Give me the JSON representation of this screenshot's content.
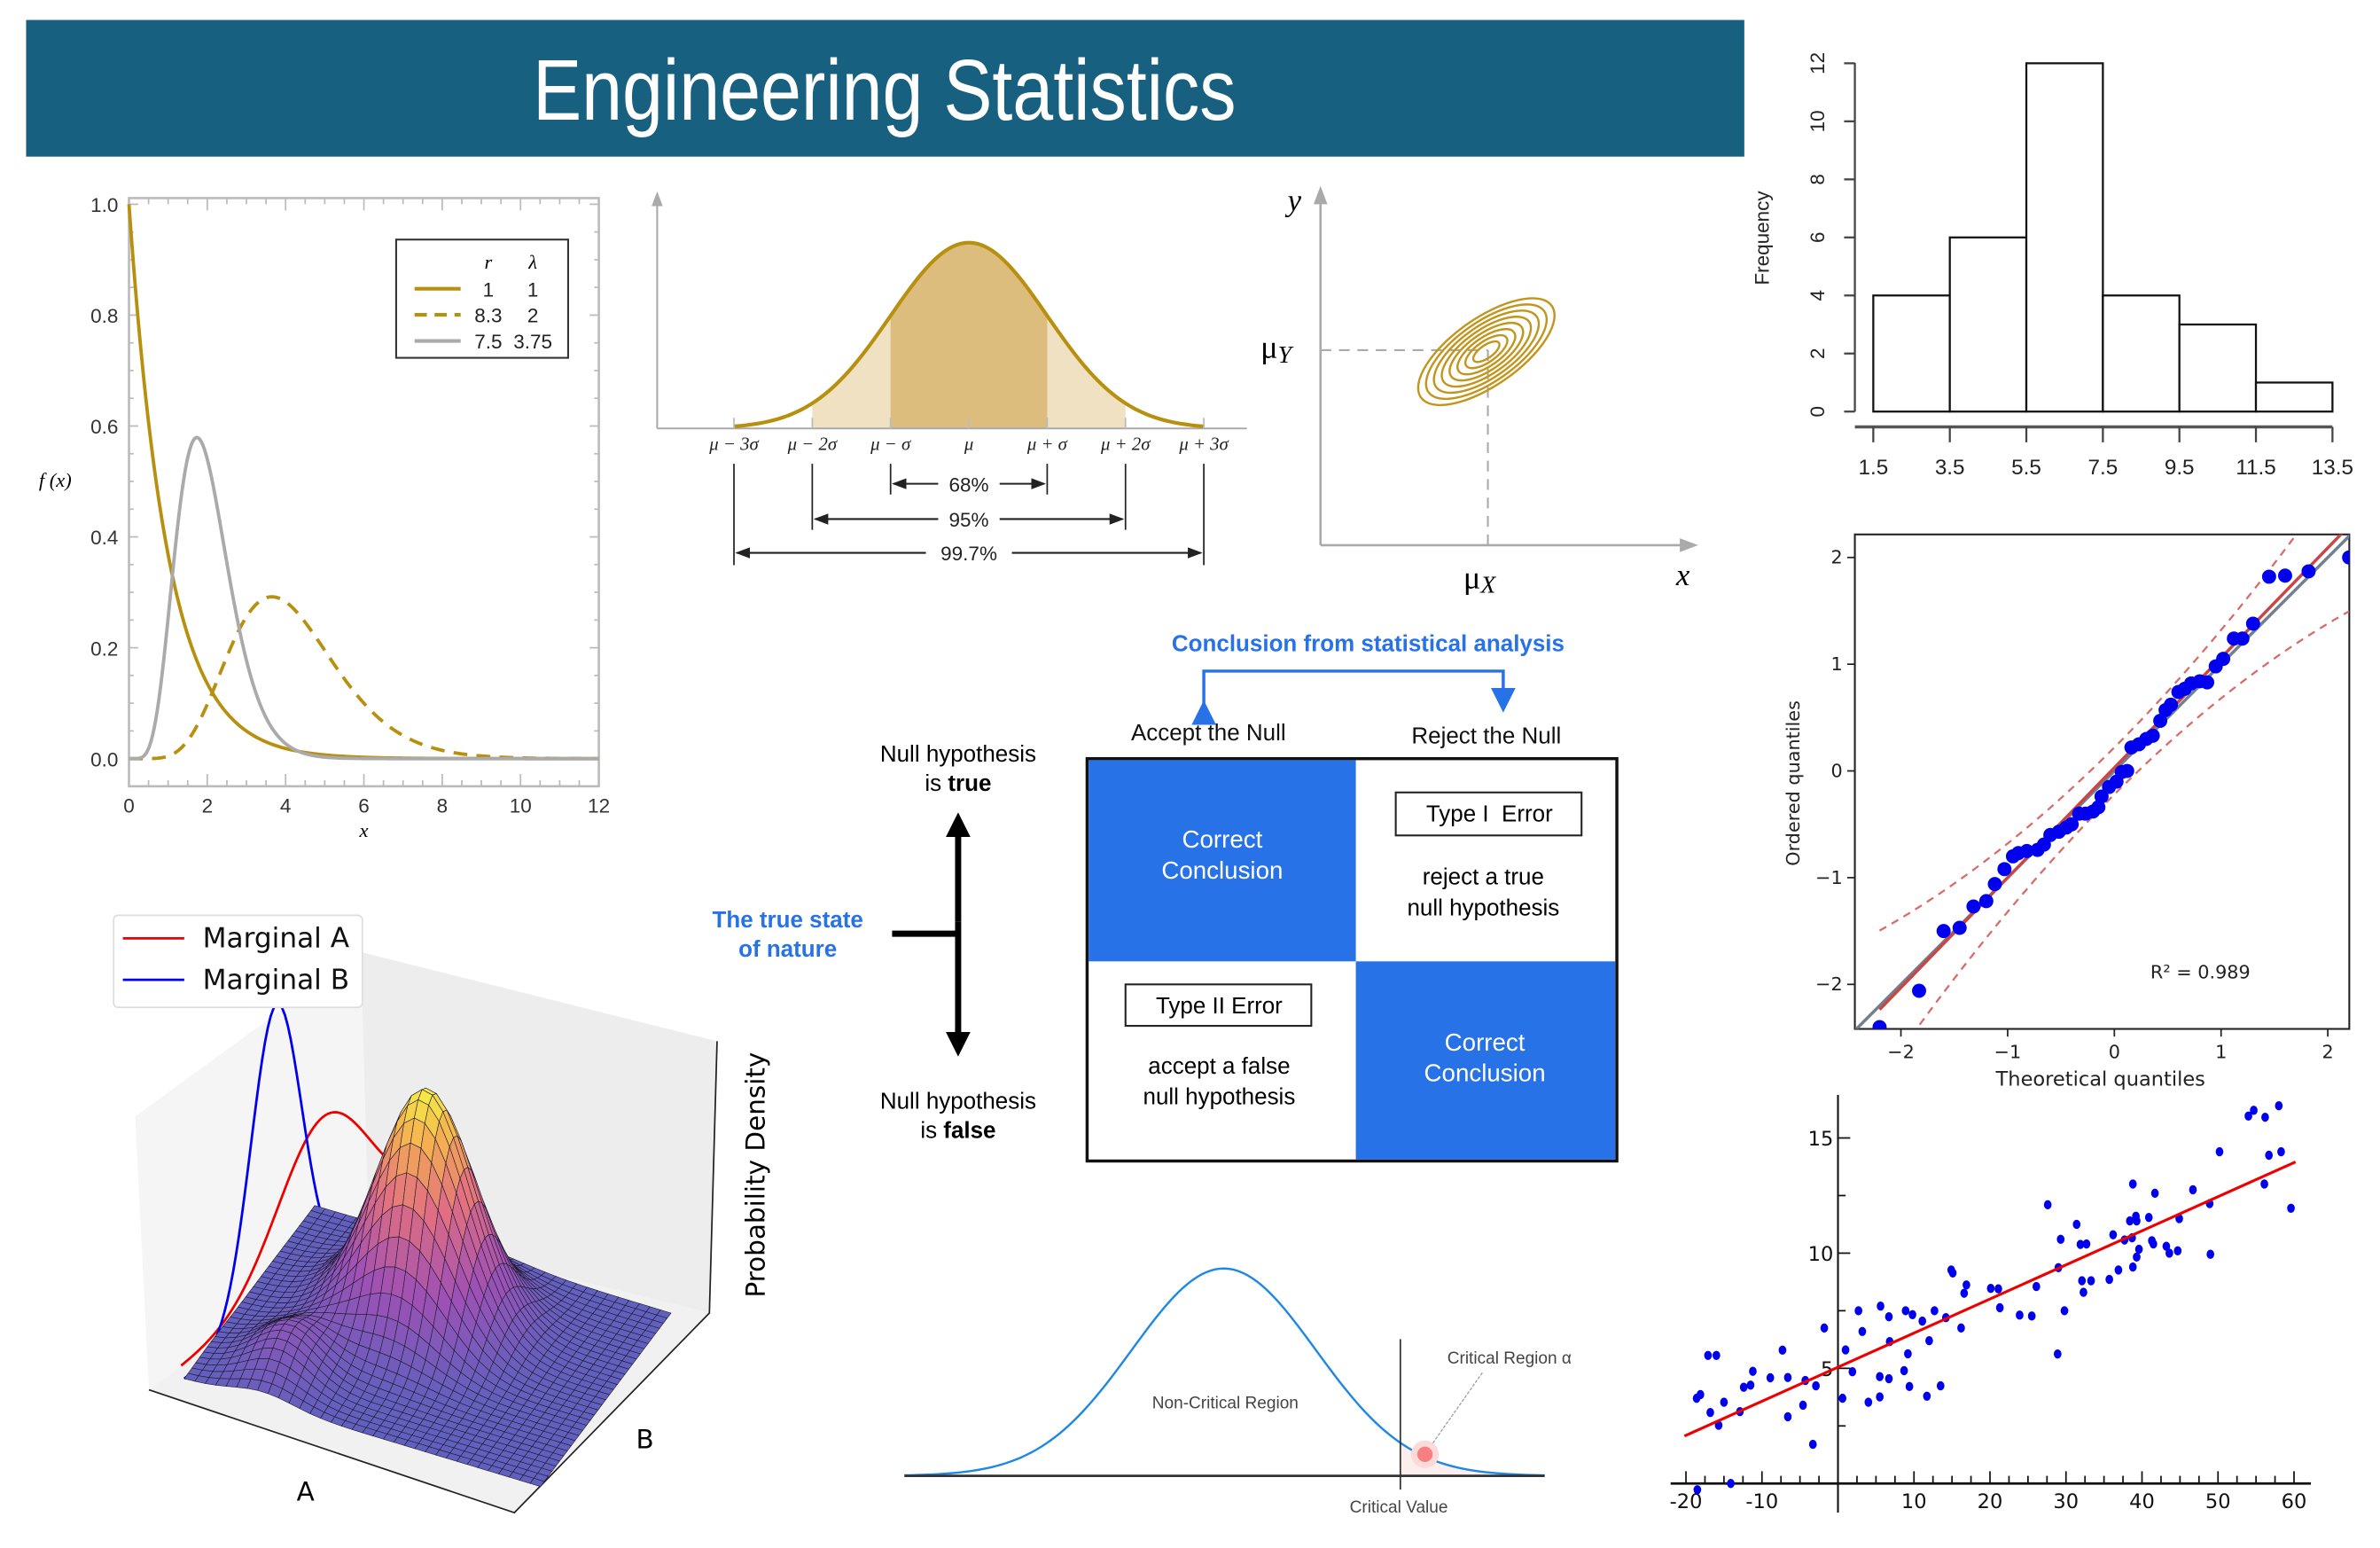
{
  "header": {
    "title": "Engineering Statistics",
    "bg": "#17607f"
  },
  "chart_data": [
    {
      "type": "line",
      "ylabel": "f (x)",
      "xlabel": "x",
      "xlim": [
        0,
        12
      ],
      "ylim": [
        0,
        1
      ],
      "xticks": [
        "0",
        "2",
        "4",
        "6",
        "8",
        "10",
        "12"
      ],
      "yticks": [
        "0.0",
        "0.2",
        "0.4",
        "0.6",
        "0.8",
        "1.0"
      ],
      "grid": false,
      "legend": {
        "placement": "top-right",
        "headers": [
          "r",
          "λ"
        ]
      },
      "series": [
        {
          "r": 1,
          "lambda": 1,
          "style": "solid",
          "color": "#b8900f"
        },
        {
          "r": 8.3,
          "lambda": 2,
          "style": "dashed",
          "color": "#b8900f"
        },
        {
          "r": 7.5,
          "lambda": 3.75,
          "style": "solid",
          "color": "#aaaaaa"
        }
      ]
    },
    {
      "type": "area",
      "tick_labels": [
        "μ − 3σ",
        "μ − 2σ",
        "μ − σ",
        "μ",
        "μ + σ",
        "μ + 2σ",
        "μ + 3σ"
      ],
      "intervals": [
        {
          "label": "68%",
          "k": 1
        },
        {
          "label": "95%",
          "k": 2
        },
        {
          "label": "99.7%",
          "k": 3
        }
      ],
      "colors": {
        "curve": "#b8900f",
        "inner": "#dcbd7e",
        "outer": "#efe1c1"
      }
    },
    {
      "type": "contour",
      "xlabel": "x",
      "ylabel": "y",
      "x_mean": {
        "symbol": "μ",
        "sub": "X"
      },
      "y_mean": {
        "symbol": "μ",
        "sub": "Y"
      },
      "color": "#c2951d"
    },
    {
      "type": "bar",
      "bin_edges": [
        1.5,
        3.5,
        5.5,
        7.5,
        9.5,
        11.5,
        13.5
      ],
      "xticks": [
        "1.5",
        "3.5",
        "5.5",
        "7.5",
        "9.5",
        "11.5",
        "13.5"
      ],
      "values": [
        4,
        6,
        12,
        4,
        3,
        1
      ],
      "ylabel": "Frequency",
      "yticks": [
        "0",
        "2",
        "4",
        "6",
        "8",
        "10",
        "12"
      ],
      "ylim": [
        0,
        12
      ]
    },
    {
      "type": "scatter",
      "xlabel": "Theoretical quantiles",
      "ylabel": "Ordered quantiles",
      "annotation": "R² = 0.989",
      "xticks": [
        "−2",
        "−1",
        "0",
        "1",
        "2"
      ],
      "yticks": [
        "−2",
        "−1",
        "0",
        "1",
        "2"
      ],
      "xlim": [
        -2.43,
        2.2
      ],
      "ylim": [
        -2.4,
        2.2
      ],
      "points": [
        [
          -2.2,
          -2.4
        ],
        [
          -1.83,
          -2.06
        ],
        [
          -1.6,
          -1.5
        ],
        [
          -1.45,
          -1.47
        ],
        [
          -1.32,
          -1.27
        ],
        [
          -1.2,
          -1.22
        ],
        [
          -1.12,
          -1.06
        ],
        [
          -1.03,
          -0.92
        ],
        [
          -0.95,
          -0.8
        ],
        [
          -0.9,
          -0.77
        ],
        [
          -0.82,
          -0.75
        ],
        [
          -0.72,
          -0.74
        ],
        [
          -0.66,
          -0.69
        ],
        [
          -0.6,
          -0.6
        ],
        [
          -0.52,
          -0.57
        ],
        [
          -0.45,
          -0.53
        ],
        [
          -0.4,
          -0.5
        ],
        [
          -0.33,
          -0.4
        ],
        [
          -0.27,
          -0.4
        ],
        [
          -0.2,
          -0.38
        ],
        [
          -0.15,
          -0.34
        ],
        [
          -0.12,
          -0.24
        ],
        [
          -0.05,
          -0.15
        ],
        [
          0.02,
          -0.1
        ],
        [
          0.07,
          -0.01
        ],
        [
          0.12,
          0
        ],
        [
          0.16,
          0.22
        ],
        [
          0.23,
          0.25
        ],
        [
          0.3,
          0.3
        ],
        [
          0.36,
          0.33
        ],
        [
          0.43,
          0.47
        ],
        [
          0.48,
          0.57
        ],
        [
          0.53,
          0.62
        ],
        [
          0.6,
          0.74
        ],
        [
          0.66,
          0.77
        ],
        [
          0.72,
          0.82
        ],
        [
          0.8,
          0.84
        ],
        [
          0.87,
          0.83
        ],
        [
          0.95,
          0.98
        ],
        [
          1.02,
          1.05
        ],
        [
          1.12,
          1.24
        ],
        [
          1.2,
          1.24
        ],
        [
          1.3,
          1.38
        ],
        [
          1.45,
          1.82
        ],
        [
          1.6,
          1.83
        ],
        [
          1.82,
          1.87
        ],
        [
          2.2,
          2.0
        ]
      ],
      "fit_line": {
        "slope": 1.03,
        "intercept": 0.03,
        "color": "#cc4444"
      },
      "reference_line": {
        "slope": 1,
        "intercept": 0,
        "color": "#708090"
      },
      "point_color": "#0000ee"
    },
    {
      "type": "scatter",
      "xticks": [
        "-20",
        "-10",
        "10",
        "20",
        "30",
        "40",
        "50",
        "60"
      ],
      "xtick_values": [
        -20,
        -10,
        10,
        20,
        30,
        40,
        50,
        60
      ],
      "yticks": [
        "5",
        "10",
        "15"
      ],
      "ytick_values": [
        5,
        10,
        15
      ],
      "xlim": [
        -20,
        60
      ],
      "ylim": [
        0,
        16.5
      ],
      "points": [
        [
          -18.6,
          3.7
        ],
        [
          -18.1,
          3.86
        ],
        [
          -17.1,
          5.56
        ],
        [
          -16,
          5.56
        ],
        [
          -16.8,
          3.08
        ],
        [
          -15.7,
          2.53
        ],
        [
          -15,
          3.53
        ],
        [
          -12.9,
          3.12
        ],
        [
          -12.4,
          4.18
        ],
        [
          -11.5,
          4.27
        ],
        [
          -11.2,
          4.87
        ],
        [
          -8.9,
          4.59
        ],
        [
          -7.3,
          5.79
        ],
        [
          -6.6,
          4.6
        ],
        [
          -6.6,
          2.9
        ],
        [
          -4.6,
          3.4
        ],
        [
          -4.3,
          4.47
        ],
        [
          -3.3,
          1.7
        ],
        [
          -2.9,
          4.24
        ],
        [
          -1.8,
          6.75
        ],
        [
          0.6,
          3.7
        ],
        [
          1,
          5.8
        ],
        [
          1.9,
          4.85
        ],
        [
          2.7,
          7.5
        ],
        [
          3.2,
          6.6
        ],
        [
          4,
          3.53
        ],
        [
          5.5,
          4.64
        ],
        [
          5.5,
          3.76
        ],
        [
          5.6,
          7.7
        ],
        [
          6.7,
          7.24
        ],
        [
          6.7,
          4.55
        ],
        [
          6.8,
          6.16
        ],
        [
          8.7,
          4.9
        ],
        [
          8.9,
          7.5
        ],
        [
          9.2,
          5.63
        ],
        [
          9.4,
          4.21
        ],
        [
          9.8,
          7.33
        ],
        [
          11.1,
          7.05
        ],
        [
          11.7,
          3.79
        ],
        [
          12,
          6.2
        ],
        [
          12.7,
          7.5
        ],
        [
          13.5,
          4.24
        ],
        [
          14.2,
          7.2
        ],
        [
          14.9,
          9.27
        ],
        [
          15.1,
          9.14
        ],
        [
          16.2,
          6.75
        ],
        [
          16.6,
          8.26
        ],
        [
          16.9,
          8.62
        ],
        [
          20.1,
          8.47
        ],
        [
          21.1,
          8.45
        ],
        [
          21.3,
          7.63
        ],
        [
          23.9,
          7.31
        ],
        [
          25.5,
          7.27
        ],
        [
          26.1,
          8.55
        ],
        [
          27.6,
          12.1
        ],
        [
          28.9,
          5.62
        ],
        [
          29,
          9.37
        ],
        [
          29.3,
          10.6
        ],
        [
          29.8,
          7.5
        ],
        [
          31.4,
          11.25
        ],
        [
          31.9,
          10.38
        ],
        [
          32.1,
          8.8
        ],
        [
          32.3,
          8.3
        ],
        [
          32.7,
          10.4
        ],
        [
          33.3,
          8.8
        ],
        [
          35.7,
          8.86
        ],
        [
          36.2,
          10.8
        ],
        [
          36.9,
          9.27
        ],
        [
          37.7,
          10.57
        ],
        [
          38.4,
          11.4
        ],
        [
          38.7,
          10.67
        ],
        [
          38.8,
          13
        ],
        [
          38.8,
          9.4
        ],
        [
          39.2,
          11.6
        ],
        [
          39.3,
          11.4
        ],
        [
          39.3,
          9.83
        ],
        [
          39.6,
          10.17
        ],
        [
          40.9,
          11.55
        ],
        [
          41.3,
          10.54
        ],
        [
          41.5,
          10.4
        ],
        [
          41.7,
          12.6
        ],
        [
          43.2,
          10.3
        ],
        [
          43.6,
          10
        ],
        [
          44.7,
          10.1
        ],
        [
          44.9,
          11.5
        ],
        [
          46.7,
          12.75
        ],
        [
          48.9,
          12.15
        ],
        [
          49,
          9.95
        ],
        [
          50.2,
          14.4
        ],
        [
          54,
          15.95
        ],
        [
          54.7,
          16.2
        ],
        [
          56.1,
          13
        ],
        [
          56.2,
          15.9
        ],
        [
          56.7,
          14.25
        ],
        [
          58,
          16.4
        ],
        [
          58.3,
          14.4
        ],
        [
          59.6,
          11.95
        ],
        [
          -18.5,
          -0.27
        ],
        [
          -14.1,
          0
        ]
      ],
      "fit_line": {
        "slope": 0.148,
        "intercept": 5.05,
        "color": "#ee0000"
      },
      "point_color": "#0000ee"
    },
    {
      "type": "surface",
      "xlabel": "A",
      "ylabel": "B",
      "zlabel": "Probability Density",
      "legend": {
        "placement": "top-left",
        "entries": [
          {
            "name": "Marginal A",
            "color": "#ee0000"
          },
          {
            "name": "Marginal B",
            "color": "#0000ee"
          }
        ]
      }
    },
    {
      "type": "area",
      "labels": {
        "non_critical": "Non-Critical Region",
        "critical": "Critical Region α",
        "critical_value": "Critical Value"
      },
      "colors": {
        "curve": "#1e88e5",
        "critical_fill": "#fdeeee",
        "marker": "#f77f7f"
      }
    }
  ],
  "hypothesis_diagram": {
    "top_label": "Conclusion from statistical analysis",
    "columns": [
      "Accept the Null",
      "Reject the Null"
    ],
    "side_label": [
      "The true state",
      "of nature"
    ],
    "row_top": {
      "line1": "Null hypothesis",
      "prefix": "is ",
      "bold": "true"
    },
    "row_bottom": {
      "line1": "Null hypothesis",
      "prefix": "is ",
      "bold": "false"
    },
    "cells": {
      "correct_1": [
        "Correct",
        "Conclusion"
      ],
      "type1": {
        "title": "Type I  Error",
        "desc": [
          "reject a true",
          "null hypothesis"
        ]
      },
      "type2": {
        "title": "Type II Error",
        "desc": [
          "accept a false",
          "null hypothesis"
        ]
      },
      "correct_2": [
        "Correct",
        "Conclusion"
      ]
    },
    "accent": "#2872e8"
  }
}
